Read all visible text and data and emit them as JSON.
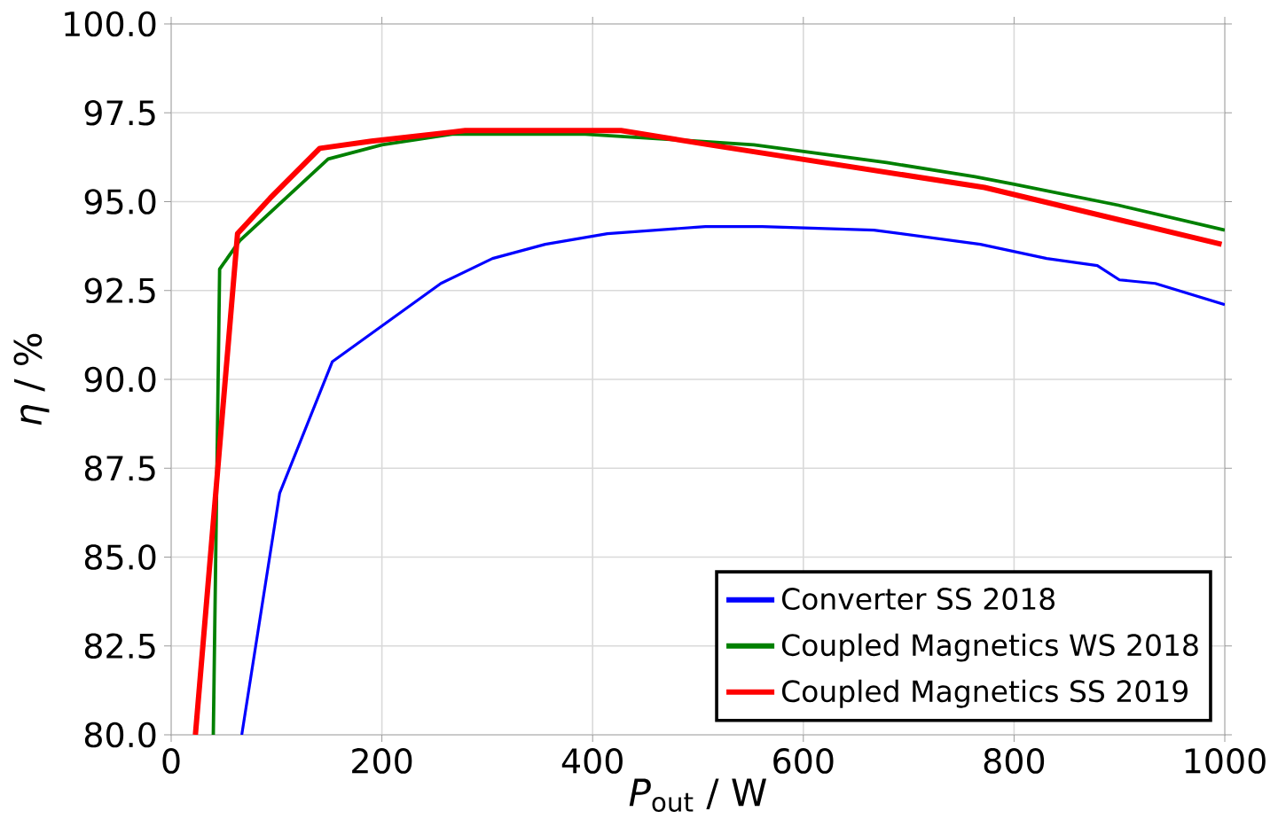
{
  "chart_data": {
    "type": "line",
    "xlabel": "*P*$_{out}$ / W",
    "ylabel": "*η* / %",
    "xlim": [
      0,
      1000
    ],
    "ylim": [
      80,
      100
    ],
    "xticks": [
      0,
      200,
      400,
      600,
      800,
      1000
    ],
    "yticks": [
      {
        "value": 80,
        "label": "80.0"
      },
      {
        "value": 82.5,
        "label": "82.5"
      },
      {
        "value": 85,
        "label": "85.0"
      },
      {
        "value": 87.5,
        "label": "87.5"
      },
      {
        "value": 90,
        "label": "90.0"
      },
      {
        "value": 92.5,
        "label": "92.5"
      },
      {
        "value": 95,
        "label": "95.0"
      },
      {
        "value": 97.5,
        "label": "97.5"
      },
      {
        "value": 100,
        "label": "100.0"
      }
    ],
    "grid": true,
    "legend": "bottom right",
    "marker": "none",
    "line_style": "solid",
    "series": [
      {
        "name": "Converter SS 2018",
        "color": "#0000ff",
        "x": [
          67,
          103,
          153,
          256,
          305,
          355,
          414,
          507,
          561,
          667,
          768,
          831,
          879,
          900,
          934,
          1000
        ],
        "values": [
          80.0,
          86.8,
          90.5,
          92.7,
          93.4,
          93.8,
          94.1,
          94.3,
          94.3,
          94.2,
          93.8,
          93.4,
          93.2,
          92.8,
          92.7,
          92.1
        ]
      },
      {
        "name": "Coupled Magnetics WS 2018",
        "color": "#008000",
        "x": [
          40,
          46,
          65,
          94,
          149,
          200,
          267,
          393,
          553,
          679,
          763,
          798,
          899,
          1000
        ],
        "values": [
          80.0,
          93.1,
          93.9,
          null,
          96.2,
          96.6,
          96.9,
          96.9,
          96.6,
          96.1,
          95.7,
          95.5,
          94.9,
          94.2
        ]
      },
      {
        "name": "Coupled Magnetics SS 2019",
        "color": "#ff0000",
        "x": [
          23,
          63,
          94,
          141,
          190,
          279,
          427,
          511,
          772,
          997
        ],
        "values": [
          80.0,
          94.1,
          95.1,
          96.5,
          96.7,
          97.0,
          97.0,
          96.6,
          95.4,
          93.8
        ]
      }
    ]
  }
}
